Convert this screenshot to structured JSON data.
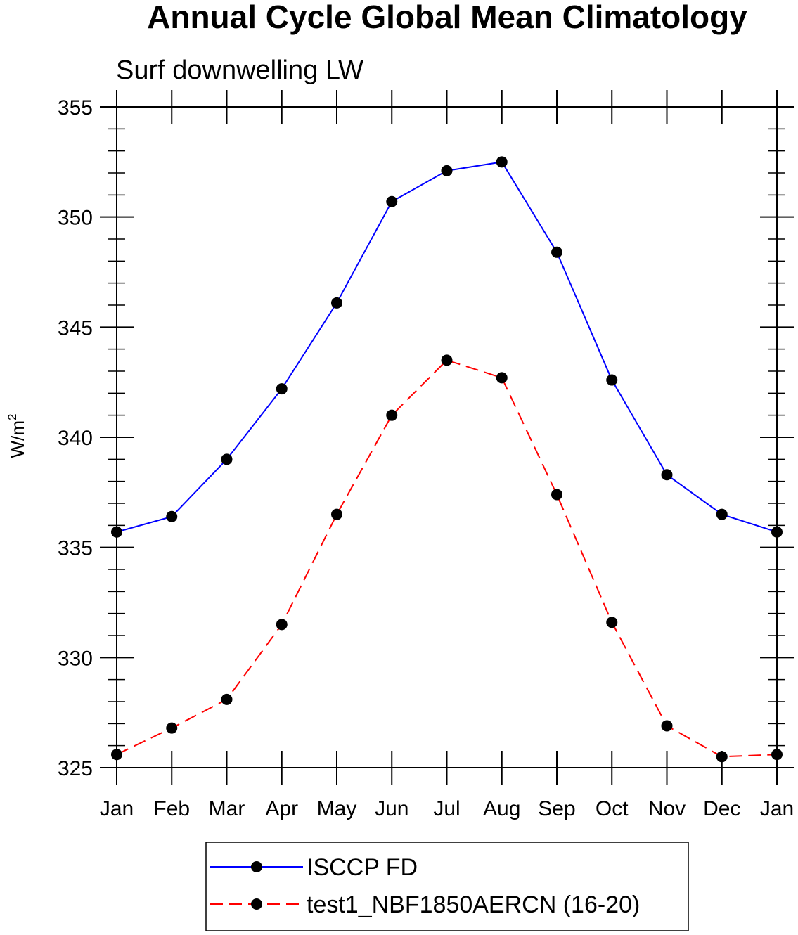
{
  "chart_data": {
    "type": "line",
    "title": "Annual Cycle Global Mean Climatology",
    "subtitle": "Surf downwelling LW",
    "ylabel": "W/m",
    "ylabel_superscript": "2",
    "xlabel": "",
    "categories": [
      "Jan",
      "Feb",
      "Mar",
      "Apr",
      "May",
      "Jun",
      "Jul",
      "Aug",
      "Sep",
      "Oct",
      "Nov",
      "Dec",
      "Jan"
    ],
    "ylim": [
      325,
      355
    ],
    "yticks": [
      325,
      330,
      335,
      340,
      345,
      350,
      355
    ],
    "y_minor_step": 1,
    "grid": false,
    "legend_position": "bottom",
    "series": [
      {
        "name": "ISCCP FD",
        "color": "#0000ff",
        "line_style": "solid",
        "marker": "filled-circle",
        "values": [
          335.7,
          336.4,
          339.0,
          342.2,
          346.1,
          350.7,
          352.1,
          352.5,
          348.4,
          342.6,
          338.3,
          336.5,
          335.7
        ]
      },
      {
        "name": "test1_NBF1850AERCN (16-20)",
        "color": "#ff0000",
        "line_style": "dashed",
        "marker": "filled-circle",
        "values": [
          325.6,
          326.8,
          328.1,
          331.5,
          336.5,
          341.0,
          343.5,
          342.7,
          337.4,
          331.6,
          326.9,
          325.5,
          325.6
        ]
      }
    ]
  }
}
